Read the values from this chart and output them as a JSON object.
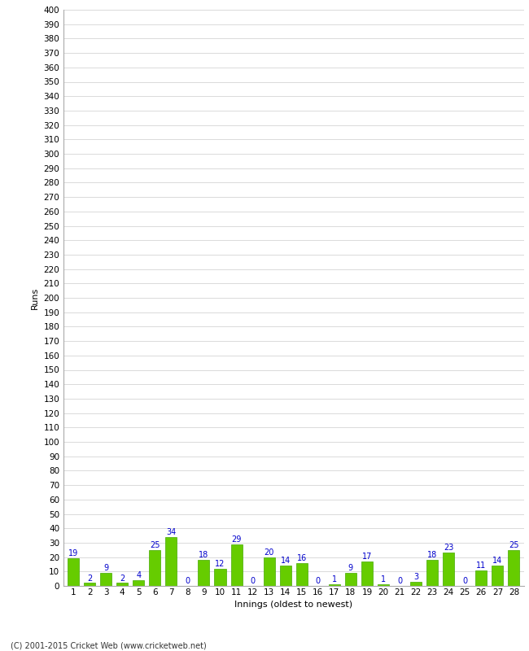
{
  "values": [
    19,
    2,
    9,
    2,
    4,
    25,
    34,
    0,
    18,
    12,
    29,
    0,
    20,
    14,
    16,
    0,
    1,
    9,
    17,
    1,
    0,
    3,
    18,
    23,
    0,
    11,
    14,
    25
  ],
  "x_labels": [
    "1",
    "2",
    "3",
    "4",
    "5",
    "6",
    "7",
    "8",
    "9",
    "10",
    "11",
    "12",
    "13",
    "14",
    "15",
    "16",
    "17",
    "18",
    "19",
    "20",
    "21",
    "22",
    "23",
    "24",
    "25",
    "26",
    "27",
    "28"
  ],
  "bar_color": "#66cc00",
  "bar_edge_color": "#44aa00",
  "ylabel": "Runs",
  "xlabel": "Innings (oldest to newest)",
  "footer": "(C) 2001-2015 Cricket Web (www.cricketweb.net)",
  "ylim": [
    0,
    400
  ],
  "yticks": [
    0,
    10,
    20,
    30,
    40,
    50,
    60,
    70,
    80,
    90,
    100,
    110,
    120,
    130,
    140,
    150,
    160,
    170,
    180,
    190,
    200,
    210,
    220,
    230,
    240,
    250,
    260,
    270,
    280,
    290,
    300,
    310,
    320,
    330,
    340,
    350,
    360,
    370,
    380,
    390,
    400
  ],
  "label_color": "#0000cc",
  "bg_color": "#ffffff",
  "grid_color": "#cccccc",
  "tick_fontsize": 7.5,
  "label_fontsize": 7,
  "axis_label_fontsize": 8,
  "footer_fontsize": 7
}
